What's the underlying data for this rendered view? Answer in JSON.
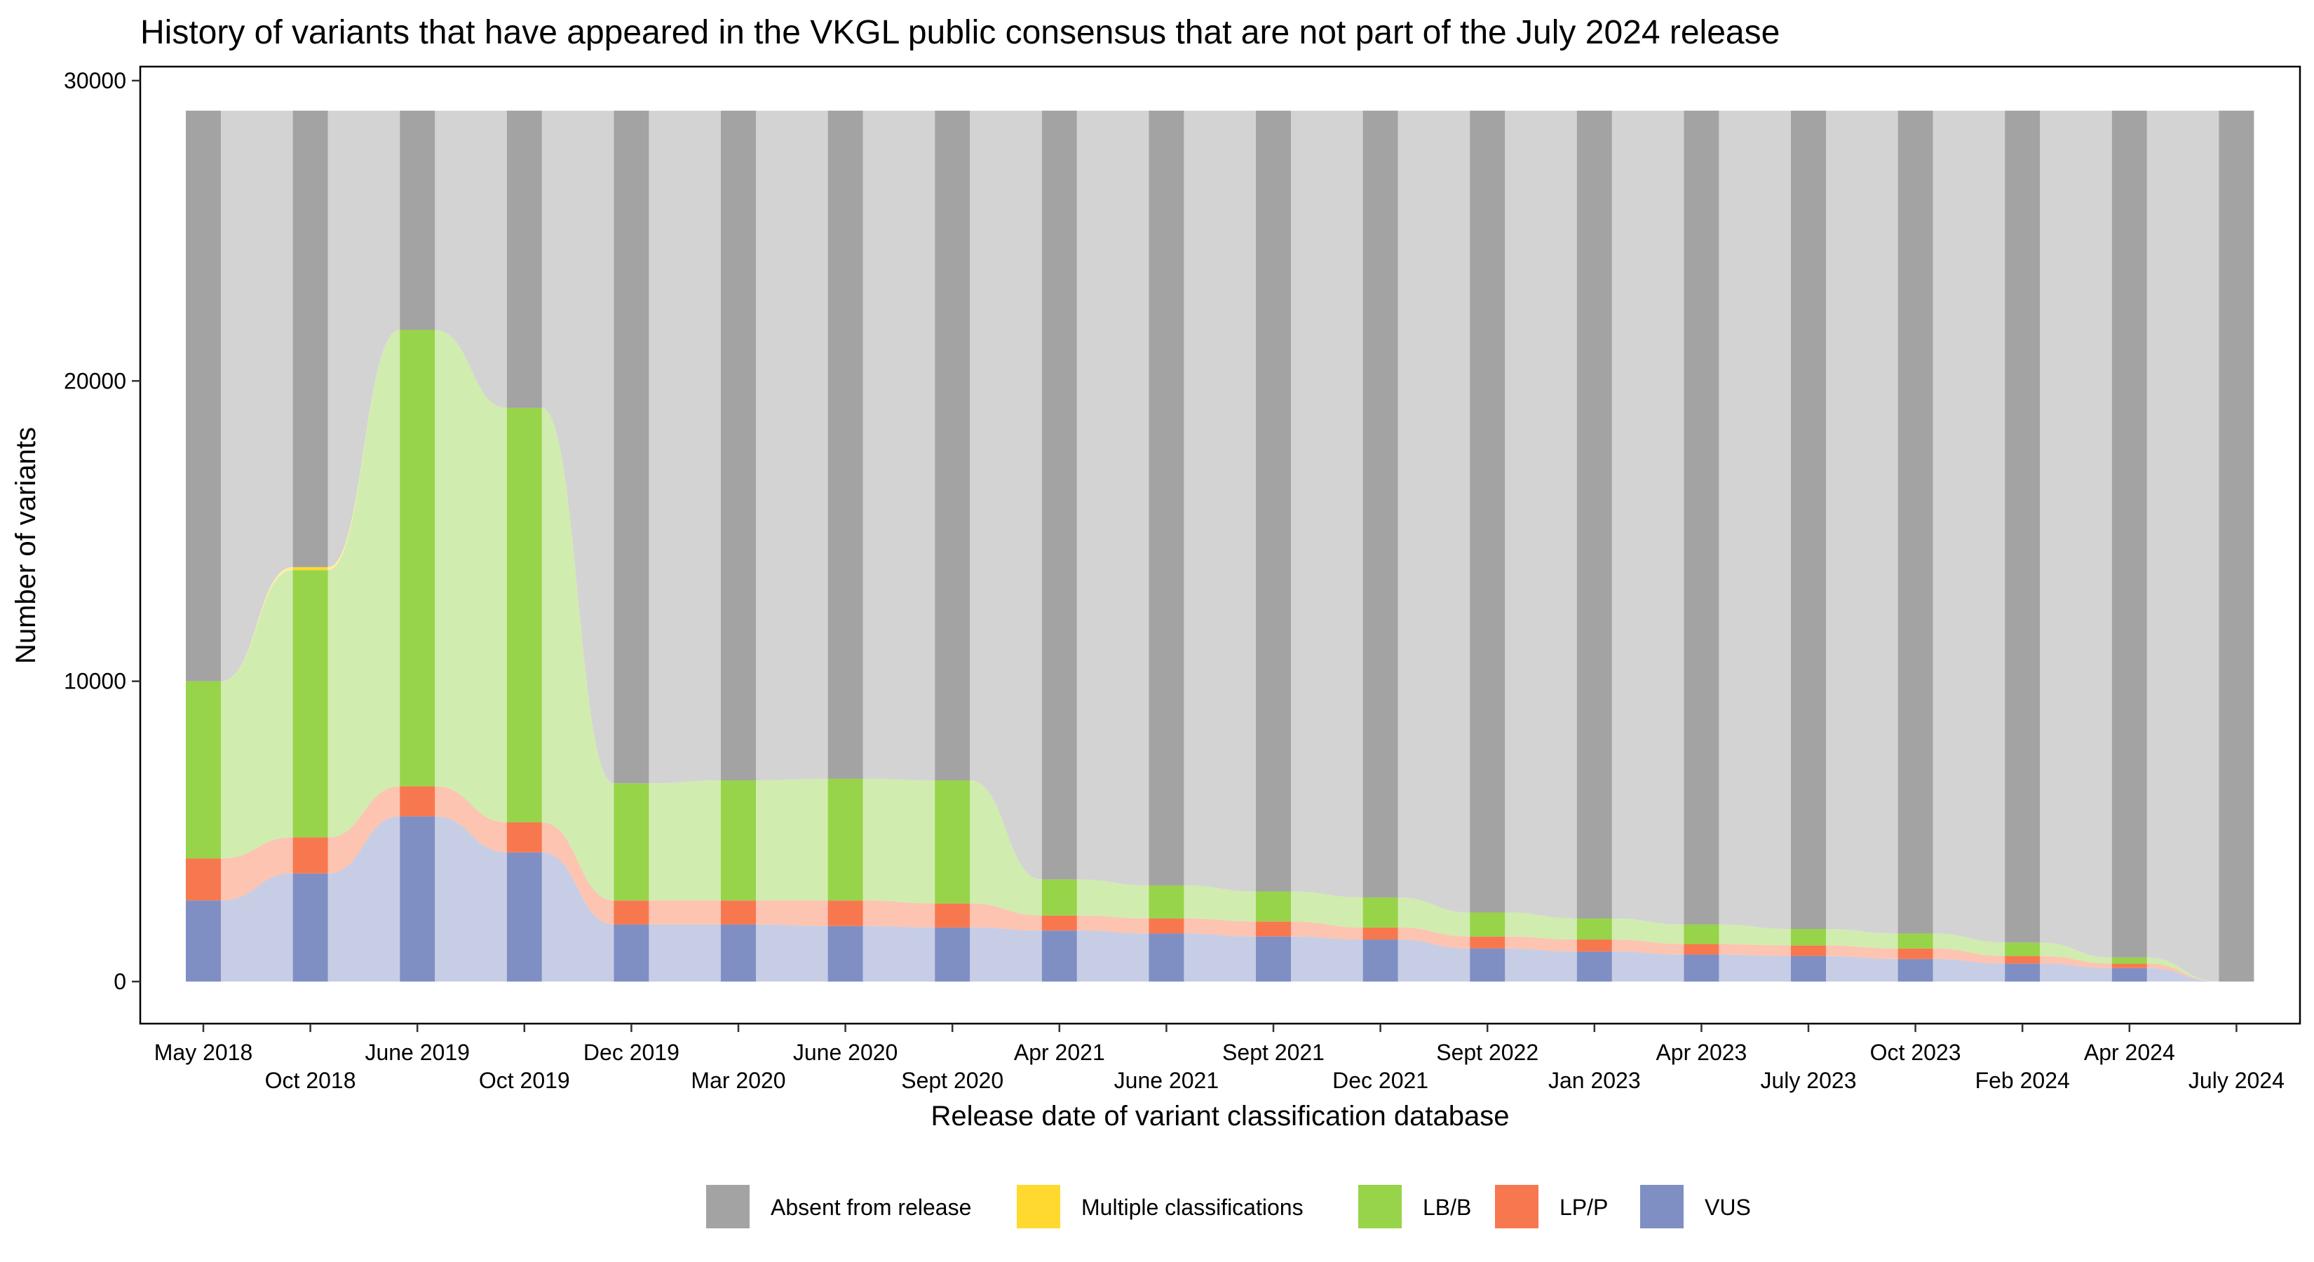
{
  "chart_data": {
    "type": "area",
    "subtype": "alluvial",
    "title": "History of variants that have appeared in the VKGL public consensus that are not part of the July 2024 release",
    "xlabel": "Release date of variant classification database",
    "ylabel": "Number of variants",
    "ylim": [
      0,
      30000
    ],
    "yticks": [
      0,
      10000,
      20000,
      30000
    ],
    "total_variants": 29000,
    "categories": [
      "May 2018",
      "Oct 2018",
      "June 2019",
      "Oct 2019",
      "Dec 2019",
      "Mar 2020",
      "June 2020",
      "Sept 2020",
      "Apr 2021",
      "June 2021",
      "Sept 2021",
      "Dec 2021",
      "Sept 2022",
      "Jan 2023",
      "Apr 2023",
      "July 2023",
      "Oct 2023",
      "Feb 2024",
      "Apr 2024",
      "July 2024"
    ],
    "series": [
      {
        "name": "VUS",
        "color": "#7F8FC4",
        "values": [
          2700,
          3600,
          5500,
          4300,
          1900,
          1900,
          1850,
          1800,
          1700,
          1600,
          1500,
          1400,
          1100,
          1000,
          900,
          850,
          750,
          600,
          450,
          0
        ]
      },
      {
        "name": "LP/P",
        "color": "#F7784F",
        "values": [
          1400,
          1200,
          1000,
          1000,
          800,
          800,
          850,
          800,
          500,
          500,
          500,
          400,
          400,
          400,
          350,
          350,
          350,
          250,
          150,
          0
        ]
      },
      {
        "name": "LB/B",
        "color": "#97D449",
        "values": [
          5900,
          8900,
          15200,
          13800,
          3900,
          4000,
          4050,
          4100,
          1200,
          1100,
          1000,
          1000,
          800,
          700,
          650,
          550,
          500,
          450,
          200,
          0
        ]
      },
      {
        "name": "Multiple classifications",
        "color": "#FFD92F",
        "values": [
          0,
          100,
          0,
          0,
          0,
          0,
          0,
          0,
          0,
          0,
          0,
          0,
          0,
          0,
          0,
          0,
          0,
          0,
          0,
          0
        ]
      },
      {
        "name": "Absent from release",
        "color": "#A3A3A3",
        "values": [
          19000,
          15200,
          7300,
          9900,
          22400,
          22300,
          22250,
          22300,
          25600,
          25800,
          26000,
          26200,
          26700,
          26900,
          27100,
          27250,
          27400,
          27700,
          28200,
          29000
        ]
      }
    ],
    "legend_position": "bottom",
    "legend": [
      {
        "label": "Absent from release",
        "color": "#A3A3A3"
      },
      {
        "label": "Multiple classifications",
        "color": "#FFD92F"
      },
      {
        "label": "LB/B",
        "color": "#97D449"
      },
      {
        "label": "LP/P",
        "color": "#F7784F"
      },
      {
        "label": "VUS",
        "color": "#7F8FC4"
      }
    ],
    "grid": false
  }
}
